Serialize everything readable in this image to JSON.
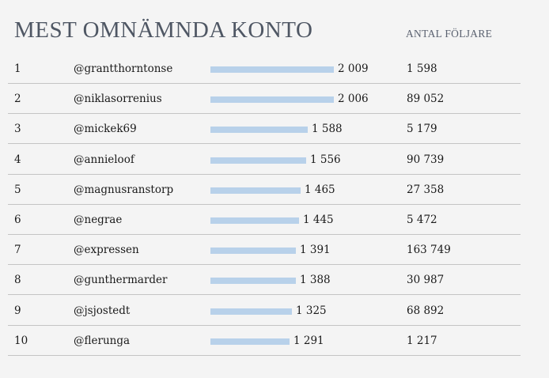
{
  "header": {
    "title": "MEST OMNÄMNDA KONTO",
    "followers_label": "ANTAL FÖLJARE"
  },
  "colors": {
    "bar": "#b8d1ea",
    "title": "#4f5764",
    "separator": "#c4c4c4"
  },
  "chart_data": {
    "type": "bar",
    "orientation": "horizontal",
    "title": "MEST OMNÄMNDA KONTO",
    "xlim": [
      0,
      2009
    ],
    "grid": false,
    "rows": [
      {
        "rank": "1",
        "account": "@grantthorntonse",
        "value": 2009,
        "value_label": "2 009",
        "followers": "1 598"
      },
      {
        "rank": "2",
        "account": "@niklasorrenius",
        "value": 2006,
        "value_label": "2 006",
        "followers": "89 052"
      },
      {
        "rank": "3",
        "account": "@mickek69",
        "value": 1588,
        "value_label": "1 588",
        "followers": "5 179"
      },
      {
        "rank": "4",
        "account": "@annieloof",
        "value": 1556,
        "value_label": "1 556",
        "followers": "90 739"
      },
      {
        "rank": "5",
        "account": "@magnusranstorp",
        "value": 1465,
        "value_label": "1 465",
        "followers": "27 358"
      },
      {
        "rank": "6",
        "account": "@negrae",
        "value": 1445,
        "value_label": "1 445",
        "followers": "5 472"
      },
      {
        "rank": "7",
        "account": "@expressen",
        "value": 1391,
        "value_label": "1 391",
        "followers": "163 749"
      },
      {
        "rank": "8",
        "account": "@gunthermarder",
        "value": 1388,
        "value_label": "1 388",
        "followers": "30 987"
      },
      {
        "rank": "9",
        "account": "@jsjostedt",
        "value": 1325,
        "value_label": "1 325",
        "followers": "68 892"
      },
      {
        "rank": "10",
        "account": "@flerunga",
        "value": 1291,
        "value_label": "1 291",
        "followers": "1 217"
      }
    ]
  }
}
